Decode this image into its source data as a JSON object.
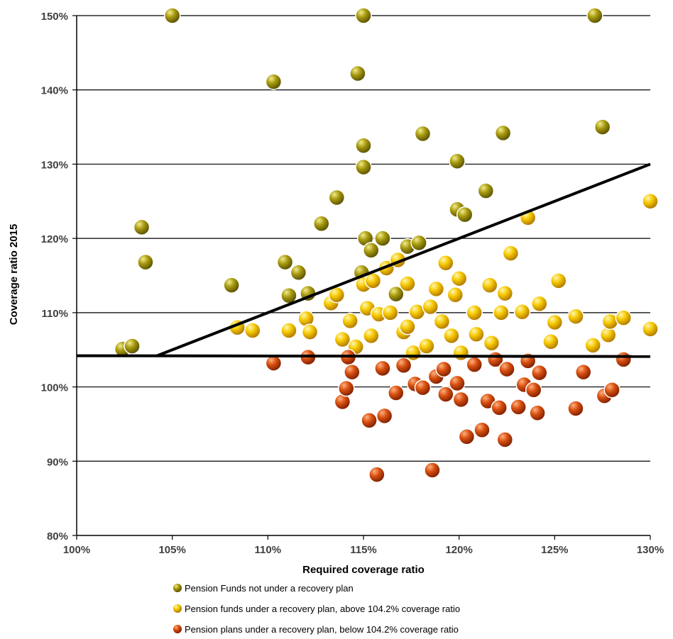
{
  "chart_data": {
    "type": "scatter",
    "title": "",
    "xlabel": "Required coverage ratio",
    "ylabel": "Coverage ratio 2015",
    "xlim": [
      100,
      130
    ],
    "ylim": [
      80,
      150
    ],
    "x_ticks": [
      "100%",
      "105%",
      "110%",
      "115%",
      "120%",
      "125%",
      "130%"
    ],
    "y_ticks": [
      "80%",
      "90%",
      "100%",
      "110%",
      "120%",
      "130%",
      "140%",
      "150%"
    ],
    "grid": "horizontal",
    "legend_position": "bottom",
    "series": [
      {
        "name": "Pension Funds not under a recovery plan",
        "color": "#8a8000",
        "points": [
          [
            102.4,
            105.1
          ],
          [
            102.9,
            105.5
          ],
          [
            103.4,
            121.5
          ],
          [
            103.6,
            116.8
          ],
          [
            105.0,
            150.0
          ],
          [
            108.1,
            113.7
          ],
          [
            110.3,
            141.1
          ],
          [
            110.9,
            116.8
          ],
          [
            111.1,
            112.3
          ],
          [
            111.6,
            115.4
          ],
          [
            112.1,
            112.6
          ],
          [
            112.8,
            122.0
          ],
          [
            113.6,
            125.5
          ],
          [
            114.7,
            142.2
          ],
          [
            114.9,
            115.4
          ],
          [
            115.0,
            132.5
          ],
          [
            115.0,
            129.6
          ],
          [
            115.0,
            150.0
          ],
          [
            115.1,
            120.0
          ],
          [
            115.4,
            118.4
          ],
          [
            116.0,
            120.0
          ],
          [
            116.7,
            112.5
          ],
          [
            117.3,
            118.9
          ],
          [
            117.9,
            119.4
          ],
          [
            118.1,
            134.1
          ],
          [
            119.9,
            130.4
          ],
          [
            119.9,
            123.9
          ],
          [
            120.3,
            123.2
          ],
          [
            121.4,
            126.4
          ],
          [
            122.3,
            134.2
          ],
          [
            127.1,
            150.0
          ],
          [
            127.5,
            135.0
          ]
        ]
      },
      {
        "name": "Pension funds under a recovery plan, above 104.2% coverage ratio",
        "color": "#f0c000",
        "points": [
          [
            108.4,
            108.0
          ],
          [
            109.2,
            107.6
          ],
          [
            111.1,
            107.6
          ],
          [
            112.0,
            109.2
          ],
          [
            112.2,
            107.4
          ],
          [
            113.3,
            111.3
          ],
          [
            113.6,
            112.4
          ],
          [
            113.9,
            106.4
          ],
          [
            114.3,
            108.9
          ],
          [
            114.6,
            105.4
          ],
          [
            115.0,
            113.8
          ],
          [
            115.2,
            110.6
          ],
          [
            115.4,
            106.9
          ],
          [
            115.5,
            114.3
          ],
          [
            115.8,
            109.8
          ],
          [
            116.2,
            116.0
          ],
          [
            116.4,
            110.0
          ],
          [
            116.8,
            117.1
          ],
          [
            117.1,
            107.4
          ],
          [
            117.3,
            113.9
          ],
          [
            117.3,
            108.1
          ],
          [
            117.6,
            104.6
          ],
          [
            117.8,
            110.1
          ],
          [
            118.3,
            105.5
          ],
          [
            118.5,
            110.8
          ],
          [
            118.8,
            113.2
          ],
          [
            119.1,
            108.8
          ],
          [
            119.3,
            116.7
          ],
          [
            119.6,
            106.9
          ],
          [
            119.8,
            112.4
          ],
          [
            120.0,
            114.6
          ],
          [
            120.1,
            104.6
          ],
          [
            120.8,
            110.0
          ],
          [
            120.9,
            107.1
          ],
          [
            121.6,
            113.7
          ],
          [
            121.7,
            105.9
          ],
          [
            122.2,
            110.0
          ],
          [
            122.4,
            112.6
          ],
          [
            122.7,
            118.0
          ],
          [
            123.3,
            110.1
          ],
          [
            123.6,
            122.8
          ],
          [
            124.2,
            111.2
          ],
          [
            124.8,
            106.1
          ],
          [
            125.0,
            108.7
          ],
          [
            125.2,
            114.3
          ],
          [
            126.1,
            109.5
          ],
          [
            127.0,
            105.6
          ],
          [
            127.8,
            107.0
          ],
          [
            127.9,
            108.8
          ],
          [
            128.6,
            109.3
          ],
          [
            130.0,
            107.8
          ],
          [
            130.0,
            125.0
          ]
        ]
      },
      {
        "name": "Pension plans under a recovery plan, below 104.2% coverage ratio",
        "color": "#c84000",
        "points": [
          [
            110.3,
            103.2
          ],
          [
            112.1,
            104.0
          ],
          [
            113.9,
            98.0
          ],
          [
            114.1,
            99.8
          ],
          [
            114.2,
            104.0
          ],
          [
            114.4,
            102.0
          ],
          [
            115.3,
            95.5
          ],
          [
            115.7,
            88.2
          ],
          [
            116.0,
            102.5
          ],
          [
            116.1,
            96.1
          ],
          [
            116.7,
            99.2
          ],
          [
            117.1,
            102.9
          ],
          [
            117.7,
            100.4
          ],
          [
            118.1,
            99.9
          ],
          [
            118.6,
            88.8
          ],
          [
            118.8,
            101.4
          ],
          [
            119.2,
            102.4
          ],
          [
            119.3,
            99.0
          ],
          [
            119.9,
            100.5
          ],
          [
            120.1,
            98.3
          ],
          [
            120.4,
            93.3
          ],
          [
            120.8,
            103.0
          ],
          [
            121.2,
            94.2
          ],
          [
            121.5,
            98.1
          ],
          [
            121.9,
            103.7
          ],
          [
            122.1,
            97.2
          ],
          [
            122.4,
            92.9
          ],
          [
            122.5,
            102.4
          ],
          [
            123.1,
            97.3
          ],
          [
            123.4,
            100.3
          ],
          [
            123.6,
            103.5
          ],
          [
            123.9,
            99.6
          ],
          [
            124.1,
            96.5
          ],
          [
            124.2,
            101.9
          ],
          [
            126.1,
            97.1
          ],
          [
            126.5,
            102.0
          ],
          [
            127.6,
            98.8
          ],
          [
            128.0,
            99.6
          ],
          [
            128.6,
            103.7
          ]
        ]
      }
    ],
    "reference_lines": [
      {
        "kind": "diagonal",
        "from": [
          104.2,
          104.2
        ],
        "to": [
          130,
          130
        ]
      },
      {
        "kind": "horizontal",
        "from": [
          100,
          104.2
        ],
        "to": [
          130,
          104.1
        ]
      }
    ]
  }
}
